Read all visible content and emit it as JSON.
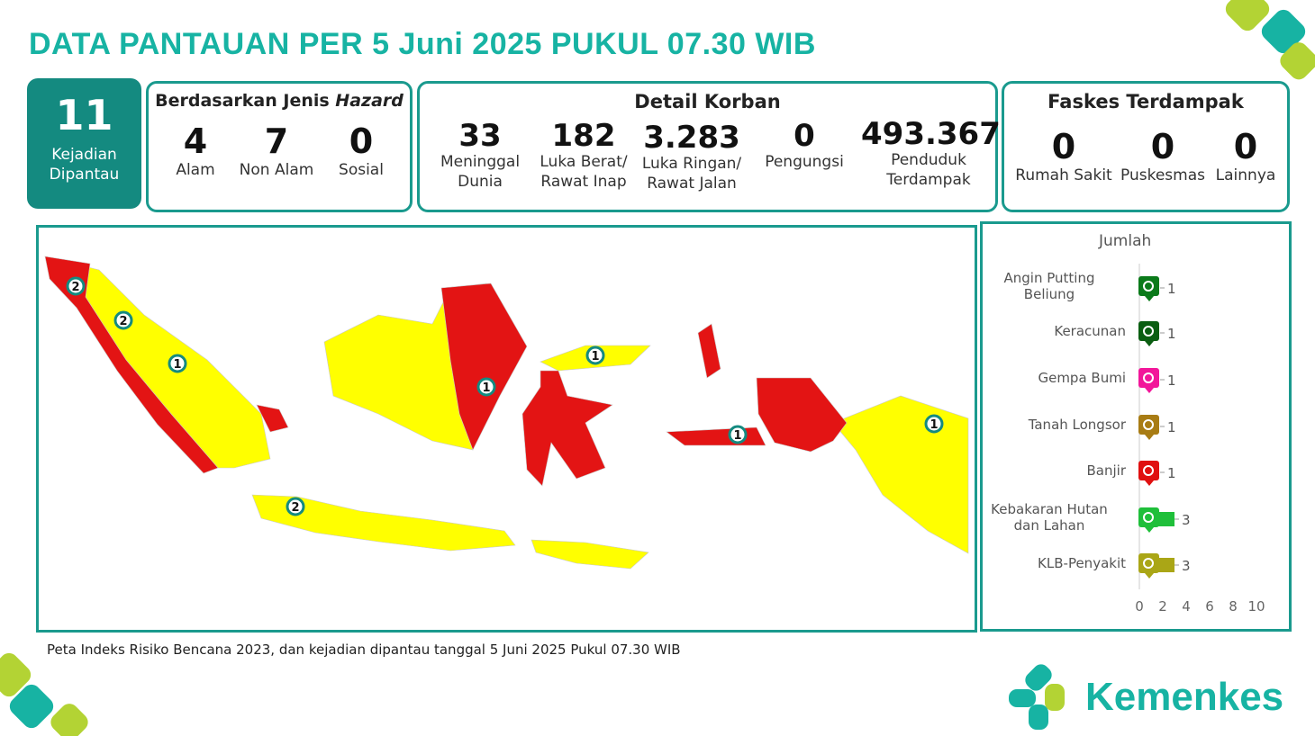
{
  "header": {
    "title": "DATA PANTAUAN PER 5 Juni 2025 PUKUL 07.30 WIB"
  },
  "kejadian": {
    "value": "11",
    "label1": "Kejadian",
    "label2": "Dipantau"
  },
  "hazard": {
    "title": "Berdasarkan Jenis ",
    "title_italic": "Hazard",
    "items": [
      {
        "value": "4",
        "label": "Alam"
      },
      {
        "value": "7",
        "label": "Non Alam"
      },
      {
        "value": "0",
        "label": "Sosial"
      }
    ]
  },
  "korban": {
    "title": "Detail Korban",
    "items": [
      {
        "value": "33",
        "label1": "Meninggal",
        "label2": "Dunia"
      },
      {
        "value": "182",
        "label1": "Luka Berat/",
        "label2": "Rawat Inap"
      },
      {
        "value": "3.283",
        "label1": "Luka Ringan/",
        "label2": "Rawat Jalan"
      },
      {
        "value": "0",
        "label1": "Pengungsi",
        "label2": ""
      },
      {
        "value": "493.367",
        "label1": "Penduduk",
        "label2": "Terdampak"
      }
    ]
  },
  "faskes": {
    "title": "Faskes Terdampak",
    "items": [
      {
        "value": "0",
        "label": "Rumah Sakit"
      },
      {
        "value": "0",
        "label": "Puskesmas"
      },
      {
        "value": "0",
        "label": "Lainnya"
      }
    ]
  },
  "map": {
    "colors": {
      "high_risk": "#e31414",
      "medium_risk": "#ffff00"
    },
    "markers": [
      "2",
      "2",
      "1",
      "2",
      "1",
      "1",
      "1",
      "1"
    ]
  },
  "caption": "Peta Indeks Risiko Bencana 2023, dan kejadian dipantau tanggal 5 Juni 2025 Pukul 07.30 WIB",
  "chart_data": {
    "type": "bar",
    "orientation": "horizontal",
    "title": "Jumlah",
    "categories": [
      "Angin Putting Beliung",
      "Keracunan",
      "Gempa Bumi",
      "Tanah Longsor",
      "Banjir",
      "Kebakaran Hutan dan Lahan",
      "KLB-Penyakit"
    ],
    "category_lines": [
      [
        "Angin Putting",
        "Beliung"
      ],
      [
        "Keracunan"
      ],
      [
        "Gempa Bumi"
      ],
      [
        "Tanah Longsor"
      ],
      [
        "Banjir"
      ],
      [
        "Kebakaran Hutan",
        "dan Lahan"
      ],
      [
        "KLB-Penyakit"
      ]
    ],
    "values": [
      1,
      1,
      1,
      1,
      1,
      3,
      3
    ],
    "value_labels": [
      "1",
      "1",
      "1",
      "1",
      "1",
      "3",
      "3"
    ],
    "colors": [
      "#0b7a1a",
      "#0b5e12",
      "#f2169a",
      "#a87c14",
      "#e01010",
      "#1fbf3a",
      "#aaa616"
    ],
    "icons": [
      "tornado-icon",
      "skull-icon",
      "earthquake-icon",
      "landslide-icon",
      "flood-icon",
      "forest-fire-icon",
      "virus-icon"
    ],
    "xlim": [
      0,
      10
    ],
    "xticks": [
      "0",
      "2",
      "4",
      "6",
      "8",
      "10"
    ],
    "grid": false
  },
  "brand": {
    "name": "Kemenkes",
    "color": "#17b3a3"
  }
}
